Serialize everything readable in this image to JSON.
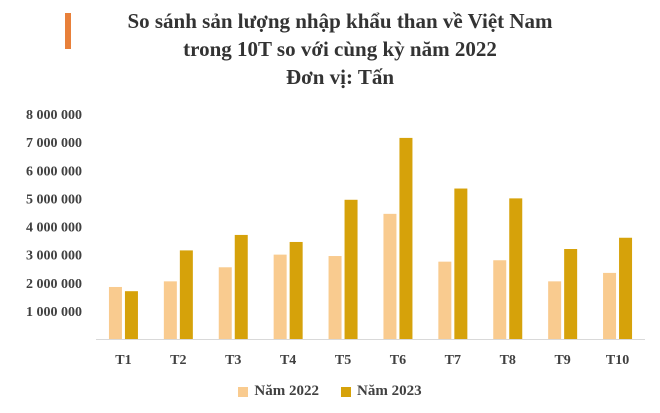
{
  "title": {
    "line1": "So sánh sản lượng nhập khẩu than về Việt Nam",
    "line2": "trong 10T so với cùng kỳ năm 2022",
    "line3": "Đơn vị: Tấn"
  },
  "colors": {
    "accent": "#e8803a",
    "series_2022": "#f9cb8f",
    "series_2023": "#d6a20a"
  },
  "chart_data": {
    "type": "bar",
    "title": "So sánh sản lượng nhập khẩu than về Việt Nam trong 10T so với cùng kỳ năm 2022",
    "subtitle": "Đơn vị: Tấn",
    "xlabel": "",
    "ylabel": "",
    "categories": [
      "T1",
      "T2",
      "T3",
      "T4",
      "T5",
      "T6",
      "T7",
      "T8",
      "T9",
      "T10"
    ],
    "ylim": [
      0,
      8000000
    ],
    "yticks": [
      1000000,
      2000000,
      3000000,
      4000000,
      5000000,
      6000000,
      7000000,
      8000000
    ],
    "ytick_labels": [
      "1 000 000",
      "2 000 000",
      "3 000 000",
      "4 000 000",
      "5 000 000",
      "6 000 000",
      "7 000 000",
      "8 000 000"
    ],
    "grid": false,
    "legend_position": "bottom",
    "series": [
      {
        "name": "Năm 2022",
        "values": [
          1850000,
          2050000,
          2550000,
          3000000,
          2950000,
          4450000,
          2750000,
          2800000,
          2050000,
          2350000
        ]
      },
      {
        "name": "Năm 2023",
        "values": [
          1700000,
          3150000,
          3700000,
          3450000,
          4950000,
          7150000,
          5350000,
          5000000,
          3200000,
          3600000
        ]
      }
    ]
  }
}
